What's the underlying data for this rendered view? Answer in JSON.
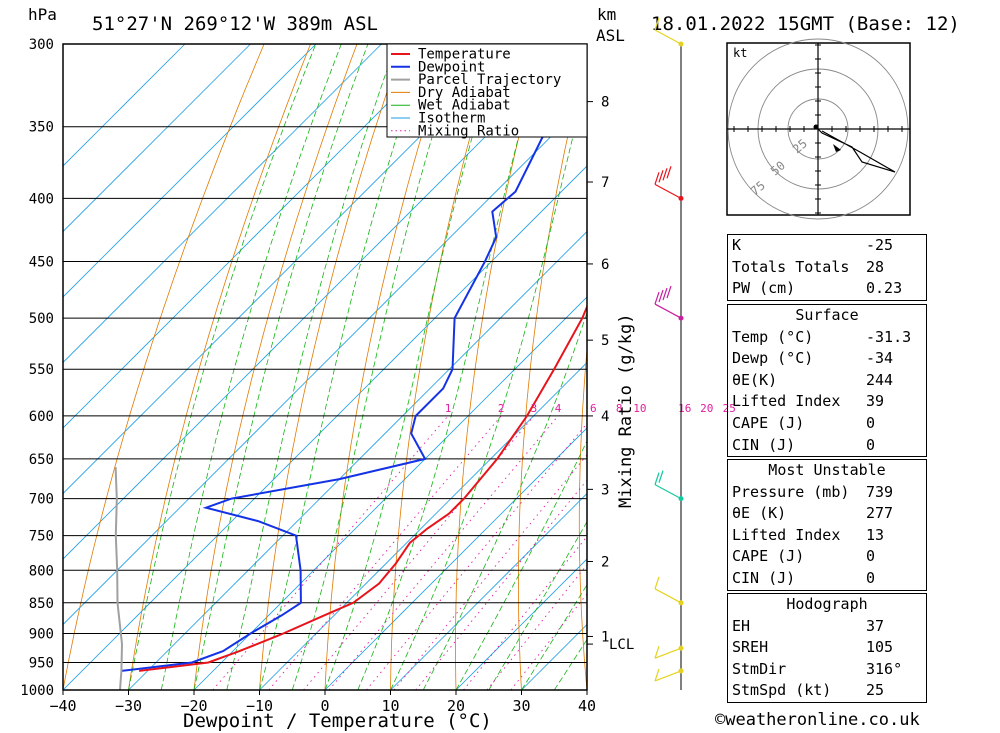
{
  "header": {
    "hpa_label": "hPa",
    "location": "51°27'N  269°12'W  389m  ASL",
    "km_label": "km",
    "asl_label": "ASL",
    "datetime": "18.01.2022  15GMT  (Base: 12)"
  },
  "colors": {
    "temperature": "#e8141c",
    "dewpoint": "#1432e6",
    "parcel": "#a0a0a0",
    "dry_adiabat": "#e07a00",
    "wet_adiabat": "#14b414",
    "isotherm": "#1e9ee6",
    "mixing_ratio": "#e01ea0",
    "wind": "#000000"
  },
  "chart_data": {
    "type": "line",
    "subtype": "skew-T log-P",
    "xlabel": "Dewpoint / Temperature (°C)",
    "ylabel": "hPa",
    "right_axis_label": "Mixing Ratio (g/kg)",
    "xlim": [
      -40,
      40
    ],
    "ylim": [
      1000,
      300
    ],
    "x_ticks": [
      "-40",
      "-30",
      "-20",
      "-10",
      "0",
      "10",
      "20",
      "30",
      "40"
    ],
    "pressure_levels": [
      300,
      350,
      400,
      450,
      500,
      550,
      600,
      650,
      700,
      750,
      800,
      850,
      900,
      950,
      1000
    ],
    "height_ticks": [
      {
        "label": "1",
        "p": 905
      },
      {
        "label": "2",
        "p": 787
      },
      {
        "label": "3",
        "p": 688
      },
      {
        "label": "4",
        "p": 600
      },
      {
        "label": "5",
        "p": 521
      },
      {
        "label": "6",
        "p": 452
      },
      {
        "label": "7",
        "p": 388
      },
      {
        "label": "8",
        "p": 334
      }
    ],
    "lcl": {
      "label": "LCL",
      "p": 918
    },
    "mixing_ratio_labels": [
      "1",
      "2",
      "3",
      "4",
      "6",
      "8",
      "10",
      "16",
      "20",
      "25"
    ],
    "legend": {
      "placement": "top-right",
      "entries": [
        "Temperature",
        "Dewpoint",
        "Parcel Trajectory",
        "Dry Adiabat",
        "Wet Adiabat",
        "Isotherm",
        "Mixing Ratio"
      ]
    },
    "series": [
      {
        "name": "Temperature",
        "points": [
          {
            "p": 965,
            "t": -31.3
          },
          {
            "p": 950,
            "t": -22
          },
          {
            "p": 930,
            "t": -19
          },
          {
            "p": 900,
            "t": -15
          },
          {
            "p": 870,
            "t": -11.5
          },
          {
            "p": 850,
            "t": -9
          },
          {
            "p": 820,
            "t": -8
          },
          {
            "p": 790,
            "t": -8.5
          },
          {
            "p": 760,
            "t": -9.5
          },
          {
            "p": 740,
            "t": -9
          },
          {
            "p": 720,
            "t": -8
          },
          {
            "p": 700,
            "t": -8
          },
          {
            "p": 650,
            "t": -9
          },
          {
            "p": 600,
            "t": -11
          },
          {
            "p": 550,
            "t": -14
          },
          {
            "p": 500,
            "t": -17.5
          },
          {
            "p": 450,
            "t": -22.5
          },
          {
            "p": 400,
            "t": -28.5
          },
          {
            "p": 350,
            "t": -35
          },
          {
            "p": 300,
            "t": -44
          }
        ]
      },
      {
        "name": "Dewpoint",
        "points": [
          {
            "p": 965,
            "t": -34
          },
          {
            "p": 950,
            "t": -24.5
          },
          {
            "p": 930,
            "t": -21.5
          },
          {
            "p": 900,
            "t": -20
          },
          {
            "p": 870,
            "t": -18
          },
          {
            "p": 850,
            "t": -17
          },
          {
            "p": 800,
            "t": -22
          },
          {
            "p": 750,
            "t": -28
          },
          {
            "p": 730,
            "t": -36
          },
          {
            "p": 712,
            "t": -46
          },
          {
            "p": 700,
            "t": -43.5
          },
          {
            "p": 675,
            "t": -30
          },
          {
            "p": 650,
            "t": -20
          },
          {
            "p": 620,
            "t": -26
          },
          {
            "p": 600,
            "t": -28
          },
          {
            "p": 570,
            "t": -28
          },
          {
            "p": 550,
            "t": -29.5
          },
          {
            "p": 500,
            "t": -37
          },
          {
            "p": 450,
            "t": -41
          },
          {
            "p": 430,
            "t": -43
          },
          {
            "p": 410,
            "t": -47.5
          },
          {
            "p": 395,
            "t": -47
          },
          {
            "p": 350,
            "t": -52
          },
          {
            "p": 300,
            "t": -60.5
          }
        ]
      },
      {
        "name": "Parcel Trajectory",
        "points": [
          {
            "p": 1000,
            "t": -31.3
          },
          {
            "p": 965,
            "t": -34
          },
          {
            "p": 918,
            "t": -38
          },
          {
            "p": 850,
            "t": -45
          },
          {
            "p": 800,
            "t": -50
          },
          {
            "p": 750,
            "t": -55.5
          },
          {
            "p": 700,
            "t": -61
          },
          {
            "p": 660,
            "t": -66
          }
        ]
      }
    ],
    "winds": [
      {
        "p": 300,
        "speed_kt": 10
      },
      {
        "p": 400,
        "speed_kt": 35
      },
      {
        "p": 500,
        "speed_kt": 50
      },
      {
        "p": 700,
        "speed_kt": 20
      },
      {
        "p": 850,
        "speed_kt": 10
      },
      {
        "p": 925,
        "speed_kt": 5
      },
      {
        "p": 965,
        "speed_kt": 5
      }
    ],
    "hodograph": {
      "unit": "kt",
      "ring_labels": [
        "25",
        "50",
        "75"
      ]
    }
  },
  "indices": {
    "k_label": "K",
    "k_value": "-25",
    "tt_label": "Totals Totals",
    "tt_value": "28",
    "pw_label": "PW (cm)",
    "pw_value": "0.23"
  },
  "surface": {
    "title": "Surface",
    "temp_label": "Temp (°C)",
    "temp_value": "-31.3",
    "dewp_label": "Dewp (°C)",
    "dewp_value": "-34",
    "thetae_label": "θE(K)",
    "thetae_value": "244",
    "li_label": "Lifted Index",
    "li_value": "39",
    "cape_label": "CAPE (J)",
    "cape_value": "0",
    "cin_label": "CIN (J)",
    "cin_value": "0"
  },
  "most_unstable": {
    "title": "Most Unstable",
    "pressure_label": "Pressure (mb)",
    "pressure_value": "739",
    "thetae_label": "θE (K)",
    "thetae_value": "277",
    "li_label": "Lifted Index",
    "li_value": "13",
    "cape_label": "CAPE (J)",
    "cape_value": "0",
    "cin_label": "CIN (J)",
    "cin_value": "0"
  },
  "hodograph_table": {
    "title": "Hodograph",
    "eh_label": "EH",
    "eh_value": "37",
    "sreh_label": "SREH",
    "sreh_value": "105",
    "stmdir_label": "StmDir",
    "stmdir_value": "316°",
    "stmspd_label": "StmSpd (kt)",
    "stmspd_value": "25"
  },
  "footer": {
    "copyright": "©weatheronline.co.uk"
  }
}
